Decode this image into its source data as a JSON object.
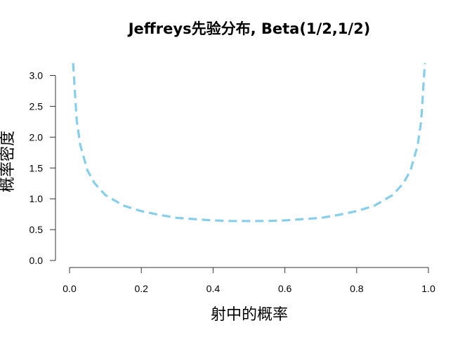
{
  "chart_data": {
    "type": "line",
    "title": "Jeffreys先验分布, Beta(1/2,1/2)",
    "xlabel": "射中的概率",
    "ylabel": "概率密度",
    "xlim": [
      0,
      1
    ],
    "ylim": [
      0,
      3.3
    ],
    "x_ticks": [
      "0.0",
      "0.2",
      "0.4",
      "0.6",
      "0.8",
      "1.0"
    ],
    "y_ticks": [
      "0.0",
      "0.5",
      "1.0",
      "1.5",
      "2.0",
      "2.5",
      "3.0"
    ],
    "grid": false,
    "legend": "none",
    "color": "#87CEEB",
    "line_style": "dashed",
    "series": [
      {
        "x": [
          0.01,
          0.02,
          0.03,
          0.05,
          0.07,
          0.1,
          0.15,
          0.2,
          0.25,
          0.3,
          0.35,
          0.4,
          0.45,
          0.5,
          0.55,
          0.6,
          0.65,
          0.7,
          0.75,
          0.8,
          0.85,
          0.9,
          0.93,
          0.95,
          0.97,
          0.98,
          0.99
        ],
        "y": [
          3.2,
          2.27,
          1.87,
          1.46,
          1.25,
          1.06,
          0.89,
          0.8,
          0.74,
          0.69,
          0.67,
          0.65,
          0.64,
          0.64,
          0.64,
          0.65,
          0.67,
          0.69,
          0.74,
          0.8,
          0.89,
          1.06,
          1.25,
          1.46,
          1.87,
          2.27,
          3.2
        ]
      }
    ]
  }
}
